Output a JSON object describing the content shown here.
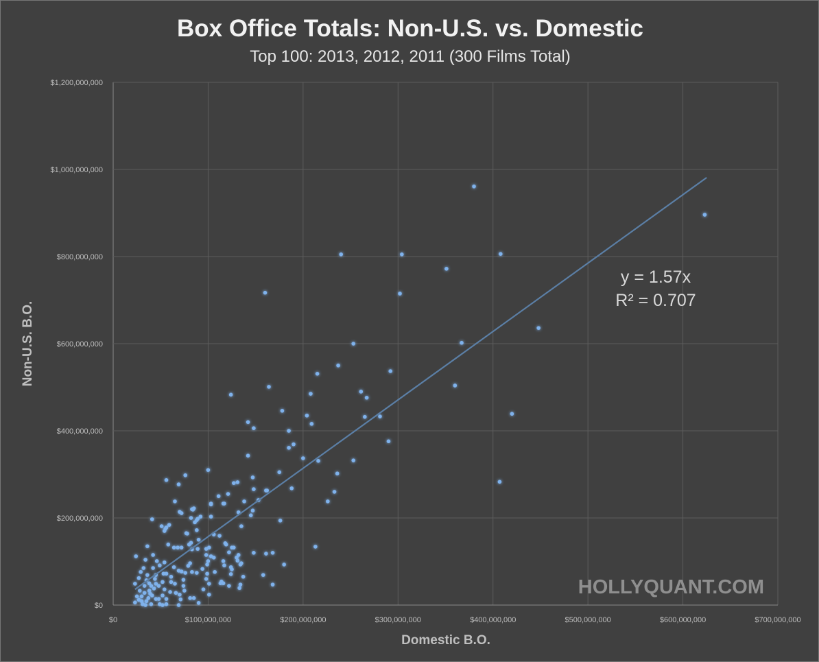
{
  "chart_data": {
    "type": "scatter",
    "title": "Box Office Totals: Non-U.S. vs. Domestic",
    "subtitle": "Top 100: 2013, 2012, 2011 (300 Films Total)",
    "xlabel": "Domestic B.O.",
    "ylabel": "Non-U.S. B.O.",
    "units": "millions USD",
    "xlim": [
      0,
      700
    ],
    "ylim": [
      0,
      1200
    ],
    "x_ticks": [
      0,
      100,
      200,
      300,
      400,
      500,
      600,
      700
    ],
    "x_tick_labels": [
      "$0",
      "$100,000,000",
      "$200,000,000",
      "$300,000,000",
      "$400,000,000",
      "$500,000,000",
      "$600,000,000",
      "$700,000,000"
    ],
    "y_ticks": [
      0,
      200,
      400,
      600,
      800,
      1000,
      1200
    ],
    "y_tick_labels": [
      "$0",
      "$200,000,000",
      "$400,000,000",
      "$600,000,000",
      "$800,000,000",
      "$1,000,000,000",
      "$1,200,000,000"
    ],
    "grid": true,
    "point_color": "#7fb2ec",
    "trendline": {
      "slope": 1.57,
      "x_range": [
        23,
        625
      ],
      "color": "#5b7fa6",
      "equation": "y = 1.57x",
      "r2": "R² = 0.707"
    },
    "watermark": "HOLLYQUANT.COM",
    "points": [
      [
        380,
        961
      ],
      [
        623,
        896
      ],
      [
        408,
        806
      ],
      [
        304,
        805
      ],
      [
        240,
        805
      ],
      [
        351,
        772
      ],
      [
        160,
        717
      ],
      [
        302,
        715
      ],
      [
        448,
        636
      ],
      [
        253,
        600
      ],
      [
        367,
        602
      ],
      [
        292,
        537
      ],
      [
        215,
        531
      ],
      [
        237,
        550
      ],
      [
        360,
        504
      ],
      [
        164,
        501
      ],
      [
        124,
        483
      ],
      [
        208,
        485
      ],
      [
        261,
        490
      ],
      [
        267,
        476
      ],
      [
        204,
        435
      ],
      [
        281,
        433
      ],
      [
        265,
        432
      ],
      [
        178,
        446
      ],
      [
        420,
        439
      ],
      [
        142,
        420
      ],
      [
        209,
        416
      ],
      [
        148,
        406
      ],
      [
        185,
        400
      ],
      [
        190,
        369
      ],
      [
        185,
        361
      ],
      [
        290,
        376
      ],
      [
        200,
        337
      ],
      [
        142,
        343
      ],
      [
        253,
        332
      ],
      [
        216,
        331
      ],
      [
        236,
        302
      ],
      [
        175,
        305
      ],
      [
        407,
        283
      ],
      [
        100,
        310
      ],
      [
        76,
        298
      ],
      [
        56,
        287
      ],
      [
        69,
        277
      ],
      [
        161,
        263
      ],
      [
        188,
        268
      ],
      [
        148,
        266
      ],
      [
        233,
        260
      ],
      [
        127,
        280
      ],
      [
        131,
        282
      ],
      [
        226,
        238
      ],
      [
        121,
        255
      ],
      [
        111,
        250
      ],
      [
        153,
        241
      ],
      [
        138,
        238
      ],
      [
        117,
        233
      ],
      [
        103,
        233
      ],
      [
        147,
        217
      ],
      [
        145,
        206
      ],
      [
        132,
        213
      ],
      [
        85,
        222
      ],
      [
        84,
        219
      ],
      [
        89,
        198
      ],
      [
        41,
        197
      ],
      [
        176,
        194
      ],
      [
        92,
        203
      ],
      [
        70,
        214
      ],
      [
        51,
        181
      ],
      [
        55,
        175
      ],
      [
        59,
        184
      ],
      [
        86,
        190
      ],
      [
        77,
        165
      ],
      [
        106,
        162
      ],
      [
        112,
        159
      ],
      [
        135,
        181
      ],
      [
        213,
        134
      ],
      [
        161,
        118
      ],
      [
        148,
        120
      ],
      [
        168,
        120
      ],
      [
        180,
        93
      ],
      [
        158,
        69
      ],
      [
        168,
        47
      ],
      [
        101,
        132
      ],
      [
        90,
        150
      ],
      [
        119,
        139
      ],
      [
        127,
        132
      ],
      [
        130,
        109
      ],
      [
        134,
        93
      ],
      [
        124,
        87
      ],
      [
        137,
        65
      ],
      [
        134,
        47
      ],
      [
        122,
        44
      ],
      [
        113,
        50
      ],
      [
        65,
        238
      ],
      [
        72,
        211
      ],
      [
        82,
        200
      ],
      [
        88,
        195
      ],
      [
        83,
        220
      ],
      [
        56,
        178
      ],
      [
        54,
        170
      ],
      [
        78,
        164
      ],
      [
        88,
        172
      ],
      [
        103,
        203
      ],
      [
        103,
        231
      ],
      [
        116,
        233
      ],
      [
        147,
        293
      ],
      [
        162,
        263
      ],
      [
        36,
        135
      ],
      [
        24,
        112
      ],
      [
        34,
        104
      ],
      [
        42,
        115
      ],
      [
        46,
        101
      ],
      [
        58,
        139
      ],
      [
        64,
        132
      ],
      [
        68,
        132
      ],
      [
        72,
        132
      ],
      [
        80,
        139
      ],
      [
        82,
        143
      ],
      [
        83,
        128
      ],
      [
        89,
        129
      ],
      [
        98,
        129
      ],
      [
        98,
        115
      ],
      [
        103,
        112
      ],
      [
        106,
        109
      ],
      [
        100,
        101
      ],
      [
        118,
        142
      ],
      [
        125,
        132
      ],
      [
        122,
        121
      ],
      [
        132,
        115
      ],
      [
        131,
        102
      ],
      [
        135,
        96
      ],
      [
        116,
        101
      ],
      [
        117,
        91
      ],
      [
        125,
        82
      ],
      [
        124,
        71
      ],
      [
        133,
        39
      ],
      [
        114,
        54
      ],
      [
        116,
        50
      ],
      [
        107,
        76
      ],
      [
        99,
        93
      ],
      [
        94,
        83
      ],
      [
        99,
        72
      ],
      [
        98,
        60
      ],
      [
        101,
        49
      ],
      [
        95,
        36
      ],
      [
        101,
        24
      ],
      [
        90,
        5
      ],
      [
        88,
        74
      ],
      [
        83,
        76
      ],
      [
        76,
        74
      ],
      [
        72,
        77
      ],
      [
        69,
        79
      ],
      [
        81,
        96
      ],
      [
        79,
        90
      ],
      [
        64,
        87
      ],
      [
        56,
        72
      ],
      [
        61,
        65
      ],
      [
        53,
        72
      ],
      [
        45,
        69
      ],
      [
        44,
        60
      ],
      [
        52,
        53
      ],
      [
        61,
        53
      ],
      [
        65,
        49
      ],
      [
        74,
        58
      ],
      [
        74,
        44
      ],
      [
        75,
        33
      ],
      [
        70,
        24
      ],
      [
        66,
        28
      ],
      [
        71,
        13
      ],
      [
        69,
        0
      ],
      [
        81,
        16
      ],
      [
        85,
        16
      ],
      [
        60,
        30
      ],
      [
        56,
        14
      ],
      [
        49,
        2
      ],
      [
        54,
        36
      ],
      [
        48,
        44
      ],
      [
        38,
        50
      ],
      [
        33,
        44
      ],
      [
        28,
        33
      ],
      [
        25,
        20
      ],
      [
        23,
        6
      ],
      [
        31,
        2
      ],
      [
        35,
        9
      ],
      [
        41,
        22
      ],
      [
        38,
        33
      ],
      [
        30,
        20
      ],
      [
        35,
        57
      ],
      [
        29,
        76
      ],
      [
        36,
        69
      ],
      [
        42,
        85
      ],
      [
        49,
        91
      ],
      [
        54,
        98
      ],
      [
        45,
        49
      ],
      [
        52,
        22
      ],
      [
        45,
        14
      ],
      [
        40,
        2
      ],
      [
        48,
        14
      ],
      [
        27,
        62
      ],
      [
        32,
        85
      ],
      [
        56,
        2
      ],
      [
        52,
        0
      ],
      [
        40,
        44
      ],
      [
        23,
        49
      ],
      [
        30,
        9
      ],
      [
        33,
        28
      ],
      [
        37,
        16
      ],
      [
        43,
        38
      ],
      [
        27,
        12
      ],
      [
        34,
        0
      ],
      [
        39,
        26
      ]
    ]
  }
}
